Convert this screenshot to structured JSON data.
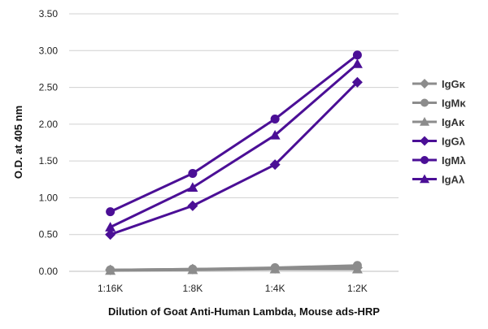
{
  "chart_data": {
    "type": "line",
    "title": "",
    "xlabel": "Dilution of Goat Anti-Human Lambda, Mouse ads-HRP",
    "ylabel": "O.D. at 405 nm",
    "categories": [
      "1:16K",
      "1:8K",
      "1:4K",
      "1:2K"
    ],
    "ylim": [
      0,
      3.5
    ],
    "yticks": [
      "0.00",
      "0.50",
      "1.00",
      "1.50",
      "2.00",
      "2.50",
      "3.00",
      "3.50"
    ],
    "grid": "horizontal",
    "legend_position": "right",
    "series": [
      {
        "name": "IgGκ",
        "color": "#8c8c8c",
        "marker": "diamond",
        "values": [
          0.02,
          0.03,
          0.04,
          0.05
        ]
      },
      {
        "name": "IgMκ",
        "color": "#8c8c8c",
        "marker": "circle",
        "values": [
          0.02,
          0.03,
          0.05,
          0.08
        ]
      },
      {
        "name": "IgAκ",
        "color": "#8c8c8c",
        "marker": "triangle",
        "values": [
          0.01,
          0.02,
          0.03,
          0.03
        ]
      },
      {
        "name": "IgGλ",
        "color": "#4b0f96",
        "marker": "diamond",
        "values": [
          0.5,
          0.89,
          1.45,
          2.57
        ]
      },
      {
        "name": "IgMλ",
        "color": "#4b0f96",
        "marker": "circle",
        "values": [
          0.81,
          1.33,
          2.07,
          2.94
        ]
      },
      {
        "name": "IgAλ",
        "color": "#4b0f96",
        "marker": "triangle",
        "values": [
          0.6,
          1.14,
          1.85,
          2.82
        ]
      }
    ]
  }
}
